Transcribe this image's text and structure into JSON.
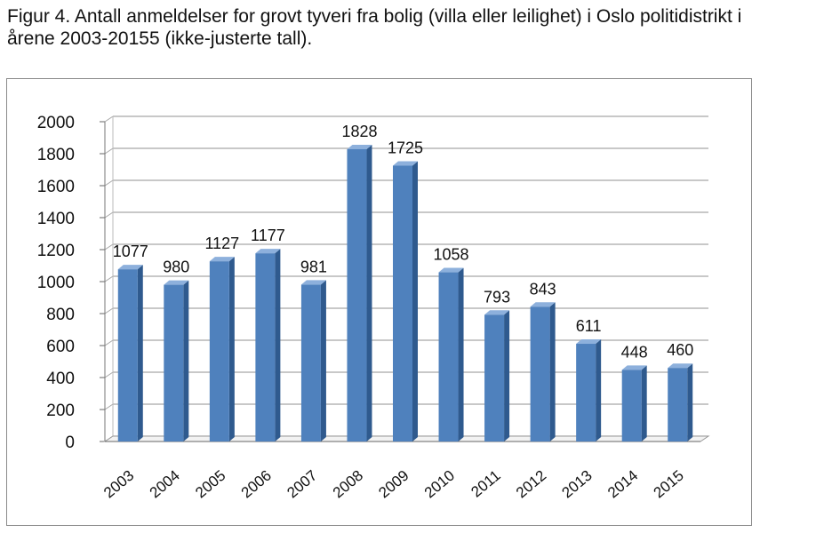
{
  "caption": {
    "line1": "Figur 4. Antall anmeldelser for grovt tyveri fra bolig (villa eller leilighet)  i Oslo politidistrikt i",
    "line2": "årene 2003-20155 (ikke-justerte tall)."
  },
  "chart_data": {
    "type": "bar",
    "title": "",
    "xlabel": "",
    "ylabel": "",
    "categories": [
      "2003",
      "2004",
      "2005",
      "2006",
      "2007",
      "2008",
      "2009",
      "2010",
      "2011",
      "2012",
      "2013",
      "2014",
      "2015"
    ],
    "values": [
      1077,
      980,
      1127,
      1177,
      981,
      1828,
      1725,
      1058,
      793,
      843,
      611,
      448,
      460
    ],
    "ylim": [
      0,
      2000
    ],
    "yticks": [
      0,
      200,
      400,
      600,
      800,
      1000,
      1200,
      1400,
      1600,
      1800,
      2000
    ],
    "grid": true,
    "legend": "none",
    "colors": {
      "bar_face": "#4f81bd",
      "bar_side": "#2f5a8e",
      "bar_top": "#8db0dc",
      "grid": "#a6a6a6"
    }
  }
}
